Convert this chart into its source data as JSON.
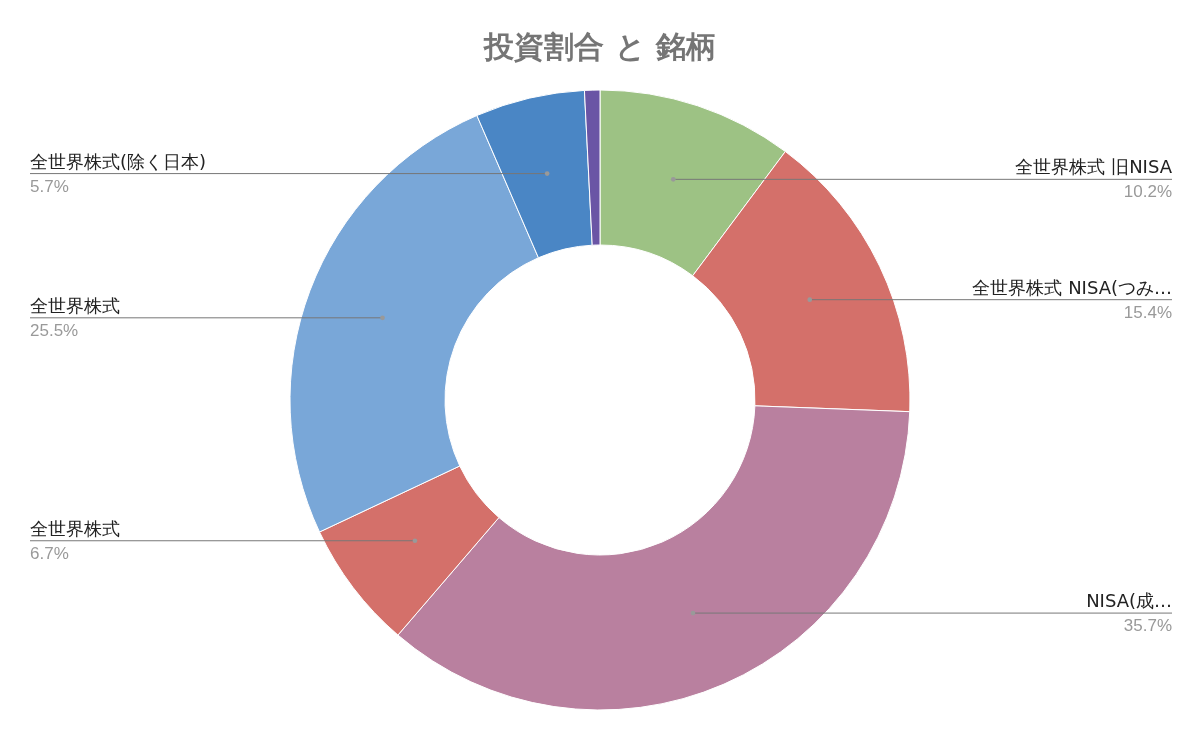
{
  "chart_data": {
    "type": "donut",
    "title": "投資割合 と 銘柄",
    "categories": [
      "全世界株式 旧NISA",
      "全世界株式 NISA(つみ…",
      "NISA(成…",
      "全世界株式",
      "全世界株式",
      "全世界株式(除く日本)",
      null
    ],
    "values": [
      10.2,
      15.4,
      35.7,
      6.7,
      25.5,
      5.7,
      0.8
    ],
    "value_labels": [
      "10.2%",
      "15.4%",
      "35.7%",
      "6.7%",
      "25.5%",
      "5.7%",
      null
    ],
    "colors": [
      "#9dc284",
      "#d4706a",
      "#b9809f",
      "#d4706a",
      "#79a7d8",
      "#4a86c5",
      "#6a55a5"
    ]
  }
}
